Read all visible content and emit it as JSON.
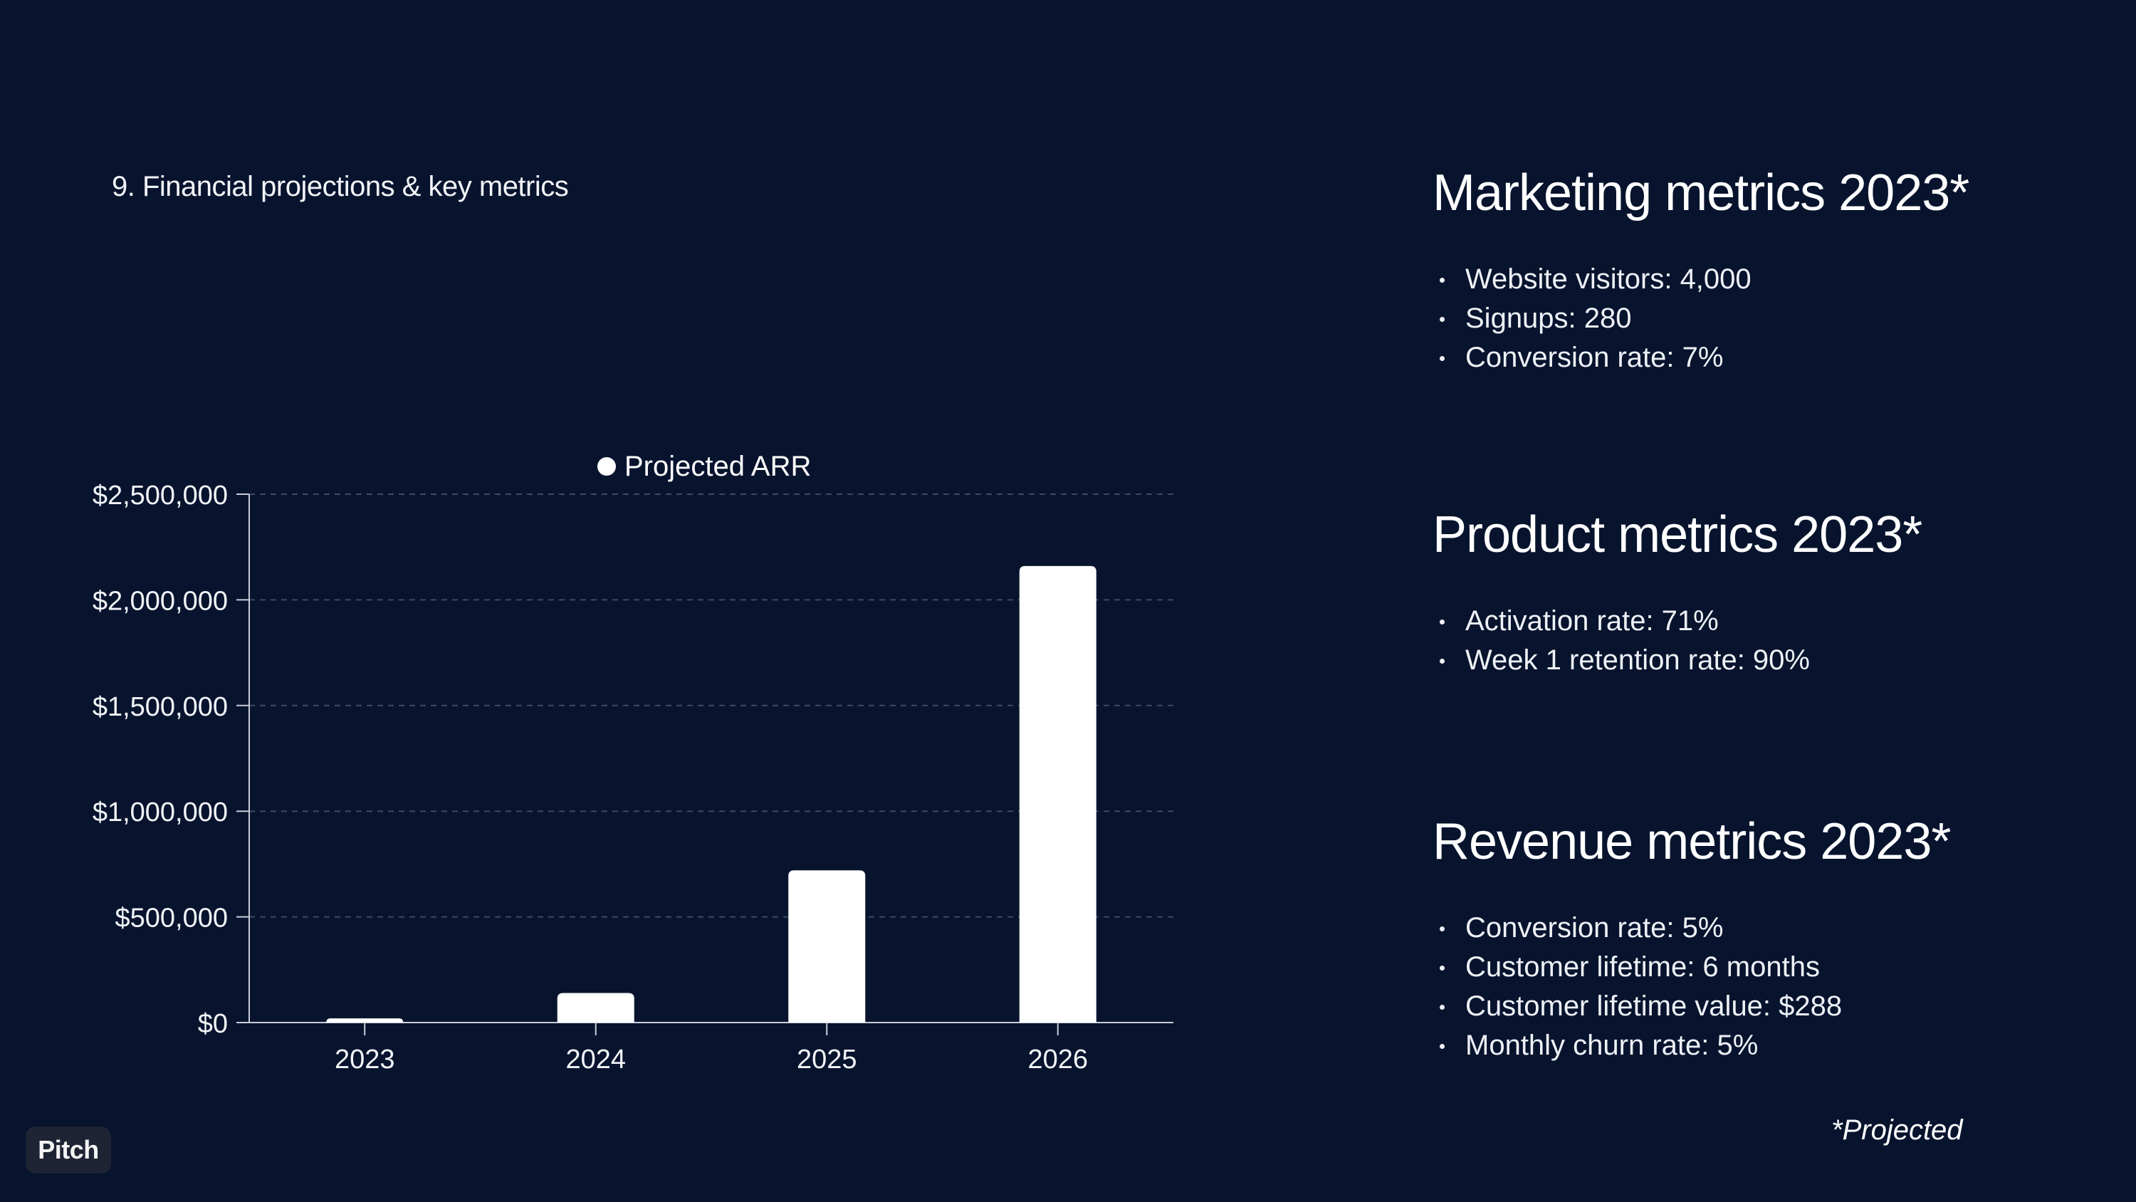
{
  "slide": {
    "title": "9. Financial projections & key metrics",
    "footnote": "*Projected",
    "badge": "Pitch"
  },
  "panels": {
    "marketing": {
      "title": "Marketing metrics 2023*",
      "items": [
        "Website visitors: 4,000",
        "Signups: 280",
        "Conversion rate: 7%"
      ]
    },
    "product": {
      "title": "Product metrics 2023*",
      "items": [
        "Activation rate: 71%",
        "Week 1 retention rate: 90%"
      ]
    },
    "revenue": {
      "title": "Revenue metrics 2023*",
      "items": [
        "Conversion rate: 5%",
        "Customer lifetime: 6 months",
        "Customer lifetime value: $288",
        "Monthly churn rate: 5%"
      ]
    }
  },
  "chart_data": {
    "type": "bar",
    "categories": [
      "2023",
      "2024",
      "2025",
      "2026"
    ],
    "series": [
      {
        "name": "Projected ARR",
        "values": [
          20000,
          140000,
          720000,
          2160000
        ]
      }
    ],
    "yticks": [
      "$0",
      "$500,000",
      "$1,000,000",
      "$1,500,000",
      "$2,000,000",
      "$2,500,000"
    ],
    "ylim": [
      0,
      2500000
    ],
    "grid": true,
    "legend": "top-center",
    "bar_color": "#ffffff",
    "grid_color": "#3a4a66"
  }
}
